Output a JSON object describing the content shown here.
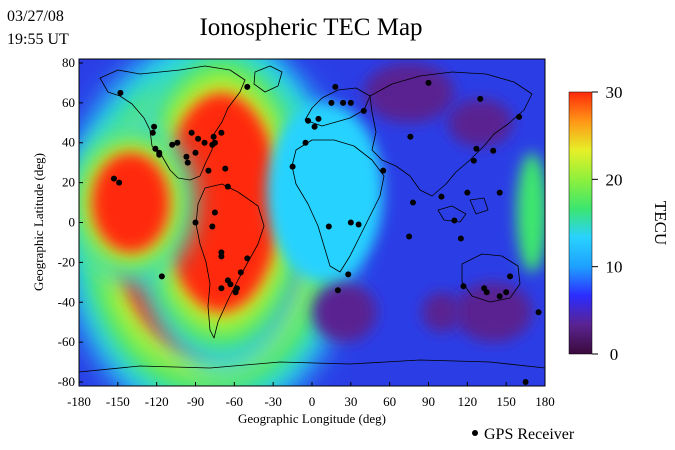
{
  "header": {
    "date": "03/27/08",
    "time": "19:55 UT",
    "title": "Ionospheric TEC Map"
  },
  "map": {
    "xlabel": "Geographic Longitude (deg)",
    "ylabel": "Geographic Latitude (deg)",
    "xlim": [
      -180,
      180
    ],
    "ylim": [
      -82,
      82
    ],
    "x_ticks": [
      "-180",
      "-150",
      "-120",
      "-90",
      "-60",
      "-30",
      "0",
      "30",
      "60",
      "90",
      "120",
      "150",
      "180"
    ],
    "y_ticks": [
      "80",
      "60",
      "40",
      "20",
      "0",
      "-20",
      "-40",
      "-60",
      "-80"
    ],
    "colorbar": {
      "label": "TECU",
      "range": [
        0,
        30
      ],
      "tick_labels": [
        "30",
        "20",
        "10",
        "0"
      ],
      "colors": [
        "#3b0a3c",
        "#5a2391",
        "#2c2cff",
        "#1ea0ff",
        "#28d2ff",
        "#3ce66e",
        "#8ef03c",
        "#e6f028",
        "#ff9616",
        "#ff2a0a"
      ]
    },
    "legend": {
      "label": "GPS Receiver"
    },
    "tec_blobs": [
      {
        "lon": -80,
        "lat": -5,
        "rx": 72,
        "ry": 62,
        "tec": 31
      },
      {
        "lon": -70,
        "lat": 10,
        "rx": 45,
        "ry": 55,
        "tec": 31
      },
      {
        "lon": -140,
        "lat": 10,
        "rx": 30,
        "ry": 25,
        "tec": 30
      },
      {
        "lon": 10,
        "lat": 15,
        "rx": 45,
        "ry": 45,
        "tec": 13
      },
      {
        "lon": 170,
        "lat": 5,
        "rx": 12,
        "ry": 30,
        "tec": 18
      },
      {
        "lon": 75,
        "lat": 65,
        "rx": 35,
        "ry": 15,
        "tec": 4
      },
      {
        "lon": 130,
        "lat": 50,
        "rx": 25,
        "ry": 12,
        "tec": 3
      },
      {
        "lon": 25,
        "lat": -45,
        "rx": 25,
        "ry": 15,
        "tec": 3
      },
      {
        "lon": 140,
        "lat": -45,
        "rx": 30,
        "ry": 15,
        "tec": 3
      },
      {
        "lon": 100,
        "lat": -45,
        "rx": 15,
        "ry": 10,
        "tec": 4
      }
    ],
    "receivers": [
      [
        -148,
        65
      ],
      [
        -153,
        22
      ],
      [
        -149,
        20
      ],
      [
        -122,
        48
      ],
      [
        -123,
        45
      ],
      [
        -121,
        37
      ],
      [
        -118,
        35
      ],
      [
        -118,
        34
      ],
      [
        -108,
        39
      ],
      [
        -104,
        40
      ],
      [
        -97,
        33
      ],
      [
        -96,
        30
      ],
      [
        -93,
        45
      ],
      [
        -90,
        35
      ],
      [
        -88,
        42
      ],
      [
        -83,
        40
      ],
      [
        -80,
        26
      ],
      [
        -77,
        39
      ],
      [
        -76,
        43
      ],
      [
        -75,
        40
      ],
      [
        -70,
        45
      ],
      [
        -67,
        27
      ],
      [
        -65,
        18
      ],
      [
        -75,
        5
      ],
      [
        -77,
        -2
      ],
      [
        -90,
        0
      ],
      [
        -116,
        -27
      ],
      [
        -70,
        -17
      ],
      [
        -58,
        -33
      ],
      [
        -63,
        -31
      ],
      [
        -65,
        -29
      ],
      [
        -59,
        -35
      ],
      [
        -55,
        -25
      ],
      [
        -50,
        -18
      ],
      [
        -70,
        -33
      ],
      [
        -70,
        -15
      ],
      [
        -50,
        68
      ],
      [
        -15,
        28
      ],
      [
        -5,
        40
      ],
      [
        -3,
        51
      ],
      [
        2,
        48
      ],
      [
        5,
        52
      ],
      [
        15,
        60
      ],
      [
        18,
        68
      ],
      [
        24,
        60
      ],
      [
        30,
        60
      ],
      [
        40,
        56
      ],
      [
        55,
        26
      ],
      [
        76,
        43
      ],
      [
        90,
        70
      ],
      [
        78,
        10
      ],
      [
        100,
        13
      ],
      [
        110,
        1
      ],
      [
        115,
        -8
      ],
      [
        125,
        31
      ],
      [
        127,
        37
      ],
      [
        140,
        36
      ],
      [
        120,
        15
      ],
      [
        145,
        15
      ],
      [
        130,
        62
      ],
      [
        160,
        53
      ],
      [
        75,
        -7
      ],
      [
        30,
        0
      ],
      [
        36,
        -1
      ],
      [
        13,
        -2
      ],
      [
        28,
        -26
      ],
      [
        20,
        -34
      ],
      [
        117,
        -32
      ],
      [
        133,
        -33
      ],
      [
        135,
        -35
      ],
      [
        145,
        -37
      ],
      [
        150,
        -35
      ],
      [
        153,
        -27
      ],
      [
        175,
        -45
      ],
      [
        165,
        -80
      ]
    ]
  }
}
